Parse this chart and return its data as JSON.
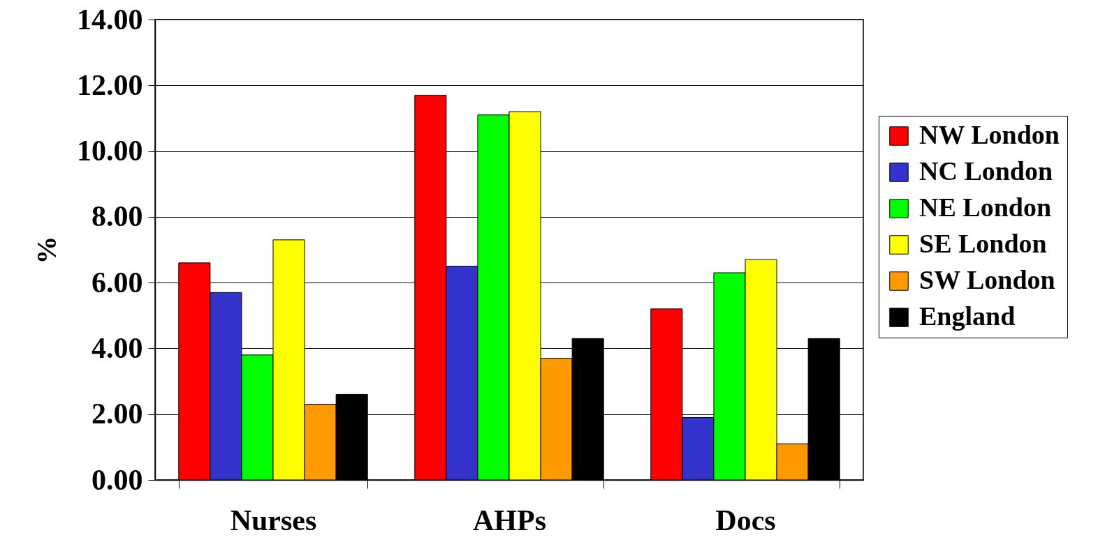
{
  "chart_data": {
    "type": "bar",
    "ylabel": "%",
    "categories": [
      "Nurses",
      "AHPs",
      "Docs"
    ],
    "series": [
      {
        "name": "NW London",
        "color": "#ff0000",
        "values": [
          6.6,
          11.7,
          5.2
        ]
      },
      {
        "name": "NC London",
        "color": "#3333cc",
        "values": [
          5.7,
          6.5,
          1.9
        ]
      },
      {
        "name": "NE London",
        "color": "#00ff00",
        "values": [
          3.8,
          11.1,
          6.3
        ]
      },
      {
        "name": "SE London",
        "color": "#ffff00",
        "values": [
          7.3,
          11.2,
          6.7
        ]
      },
      {
        "name": "SW London",
        "color": "#ff9900",
        "values": [
          2.3,
          3.7,
          1.1
        ]
      },
      {
        "name": "England",
        "color": "#000000",
        "values": [
          2.6,
          4.3,
          4.3
        ]
      }
    ],
    "ylim": [
      0,
      14
    ],
    "yticks": [
      {
        "value": 0,
        "label": "0.00"
      },
      {
        "value": 2,
        "label": "2.00"
      },
      {
        "value": 4,
        "label": "4.00"
      },
      {
        "value": 6,
        "label": "6.00"
      },
      {
        "value": 8,
        "label": "8.00"
      },
      {
        "value": 10,
        "label": "10.00"
      },
      {
        "value": 12,
        "label": "12.00"
      },
      {
        "value": 14,
        "label": "14.00"
      }
    ],
    "grid": "y",
    "legend": "right"
  }
}
